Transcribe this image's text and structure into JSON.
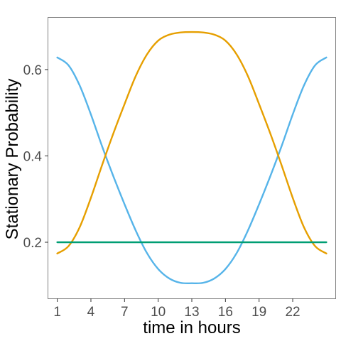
{
  "chart_data": {
    "type": "line",
    "title": "",
    "xlabel": "time in hours",
    "ylabel": "Stationary Probability",
    "x_ticks": [
      1,
      4,
      7,
      10,
      13,
      16,
      19,
      22
    ],
    "y_ticks": [
      0.2,
      0.4,
      0.6
    ],
    "xlim": [
      0.2,
      25.8
    ],
    "ylim": [
      0.07,
      0.72
    ],
    "grid": false,
    "legend": "none",
    "x": [
      1,
      2,
      3,
      4,
      5,
      6,
      7,
      8,
      9,
      10,
      11,
      12,
      13,
      14,
      15,
      16,
      17,
      18,
      19,
      20,
      21,
      22,
      23,
      24,
      25
    ],
    "series": [
      {
        "color": "#56B4E9",
        "values": [
          0.628,
          0.61,
          0.563,
          0.496,
          0.422,
          0.353,
          0.288,
          0.227,
          0.175,
          0.138,
          0.116,
          0.106,
          0.105,
          0.106,
          0.116,
          0.138,
          0.175,
          0.227,
          0.288,
          0.353,
          0.422,
          0.496,
          0.563,
          0.61,
          0.628
        ]
      },
      {
        "color": "#E69F00",
        "values": [
          0.174,
          0.191,
          0.235,
          0.303,
          0.379,
          0.452,
          0.52,
          0.585,
          0.635,
          0.667,
          0.681,
          0.686,
          0.687,
          0.686,
          0.681,
          0.667,
          0.635,
          0.585,
          0.52,
          0.452,
          0.379,
          0.303,
          0.235,
          0.191,
          0.174
        ]
      },
      {
        "color": "#009E73",
        "values": [
          0.2,
          0.2,
          0.2,
          0.2,
          0.2,
          0.2,
          0.2,
          0.2,
          0.2,
          0.2,
          0.2,
          0.2,
          0.2,
          0.2,
          0.2,
          0.2,
          0.2,
          0.2,
          0.2,
          0.2,
          0.2,
          0.2,
          0.2,
          0.2,
          0.2
        ]
      }
    ]
  }
}
